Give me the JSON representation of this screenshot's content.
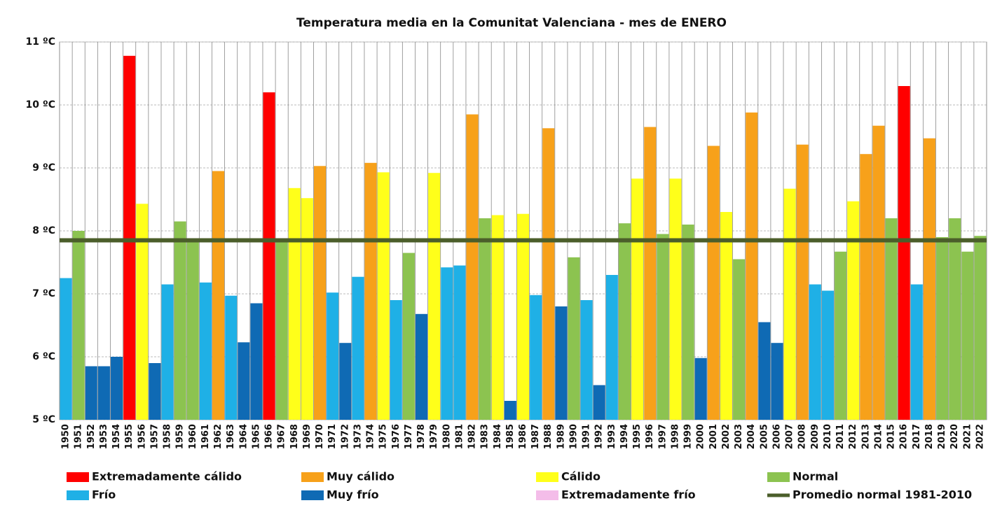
{
  "chart_data": {
    "type": "bar",
    "title": "Temperatura media en la Comunitat Valenciana - mes de ENERO",
    "categories": [
      "1950",
      "1951",
      "1952",
      "1953",
      "1954",
      "1955",
      "1956",
      "1957",
      "1958",
      "1959",
      "1960",
      "1961",
      "1962",
      "1963",
      "1964",
      "1965",
      "1966",
      "1967",
      "1968",
      "1969",
      "1970",
      "1971",
      "1972",
      "1973",
      "1974",
      "1975",
      "1976",
      "1977",
      "1978",
      "1979",
      "1980",
      "1981",
      "1982",
      "1983",
      "1984",
      "1985",
      "1986",
      "1987",
      "1988",
      "1989",
      "1990",
      "1991",
      "1992",
      "1993",
      "1994",
      "1995",
      "1996",
      "1997",
      "1998",
      "1999",
      "2000",
      "2001",
      "2002",
      "2003",
      "2004",
      "2005",
      "2006",
      "2007",
      "2008",
      "2009",
      "2010",
      "2011",
      "2012",
      "2013",
      "2014",
      "2015",
      "2016",
      "2017",
      "2018",
      "2019",
      "2020",
      "2021",
      "2022"
    ],
    "values": [
      7.25,
      8.0,
      5.85,
      5.85,
      6.0,
      10.78,
      8.43,
      5.9,
      7.15,
      8.15,
      7.85,
      7.18,
      8.95,
      6.97,
      6.23,
      6.85,
      10.2,
      7.82,
      8.68,
      8.52,
      9.03,
      7.02,
      6.22,
      7.27,
      9.08,
      8.93,
      6.9,
      7.65,
      6.68,
      8.92,
      7.42,
      7.45,
      9.85,
      8.2,
      8.25,
      5.3,
      8.27,
      6.98,
      9.63,
      6.8,
      7.58,
      6.9,
      5.55,
      7.3,
      8.12,
      8.83,
      9.65,
      7.95,
      8.83,
      8.1,
      5.98,
      9.35,
      8.3,
      7.55,
      9.88,
      6.55,
      6.22,
      8.67,
      9.37,
      7.15,
      7.05,
      7.67,
      8.47,
      9.22,
      9.67,
      8.2,
      10.3,
      7.15,
      9.47,
      7.9,
      8.2,
      7.67,
      7.92
    ],
    "colors": [
      "#1fb0e6",
      "#8cc350",
      "#0f6ab4",
      "#0f6ab4",
      "#0f6ab4",
      "#ff0000",
      "#ffff1a",
      "#0f6ab4",
      "#1fb0e6",
      "#8cc350",
      "#8cc350",
      "#1fb0e6",
      "#f7a11a",
      "#1fb0e6",
      "#0f6ab4",
      "#0f6ab4",
      "#ff0000",
      "#8cc350",
      "#ffff1a",
      "#ffff1a",
      "#f7a11a",
      "#1fb0e6",
      "#0f6ab4",
      "#1fb0e6",
      "#f7a11a",
      "#ffff1a",
      "#1fb0e6",
      "#8cc350",
      "#0f6ab4",
      "#ffff1a",
      "#1fb0e6",
      "#1fb0e6",
      "#f7a11a",
      "#8cc350",
      "#ffff1a",
      "#0f6ab4",
      "#ffff1a",
      "#1fb0e6",
      "#f7a11a",
      "#0f6ab4",
      "#8cc350",
      "#1fb0e6",
      "#0f6ab4",
      "#1fb0e6",
      "#8cc350",
      "#ffff1a",
      "#f7a11a",
      "#8cc350",
      "#ffff1a",
      "#8cc350",
      "#0f6ab4",
      "#f7a11a",
      "#ffff1a",
      "#8cc350",
      "#f7a11a",
      "#0f6ab4",
      "#0f6ab4",
      "#ffff1a",
      "#f7a11a",
      "#1fb0e6",
      "#1fb0e6",
      "#8cc350",
      "#ffff1a",
      "#f7a11a",
      "#f7a11a",
      "#8cc350",
      "#ff0000",
      "#1fb0e6",
      "#f7a11a",
      "#8cc350",
      "#8cc350",
      "#8cc350",
      "#8cc350"
    ],
    "ylim": [
      5,
      11
    ],
    "yticks": [
      {
        "value": 5,
        "label": "5 ºC"
      },
      {
        "value": 6,
        "label": "6 ºC"
      },
      {
        "value": 7,
        "label": "7 ºC"
      },
      {
        "value": 8,
        "label": "8 ºC"
      },
      {
        "value": 9,
        "label": "9 ºC"
      },
      {
        "value": 10,
        "label": "10 ºC"
      },
      {
        "value": 11,
        "label": "11 ºC"
      }
    ],
    "grid": true,
    "reference_line": {
      "name": "Promedio normal 1981-2010",
      "value": 7.85,
      "color": "#4b5e2a"
    },
    "legend": [
      {
        "name": "Extremadamente cálido",
        "color": "#ff0000"
      },
      {
        "name": "Muy cálido",
        "color": "#f7a11a"
      },
      {
        "name": "Cálido",
        "color": "#ffff1a"
      },
      {
        "name": "Normal",
        "color": "#8cc350"
      },
      {
        "name": "Frío",
        "color": "#1fb0e6"
      },
      {
        "name": "Muy frío",
        "color": "#0f6ab4"
      },
      {
        "name": "Extremadamente frío",
        "color": "#f4bde9"
      }
    ]
  }
}
